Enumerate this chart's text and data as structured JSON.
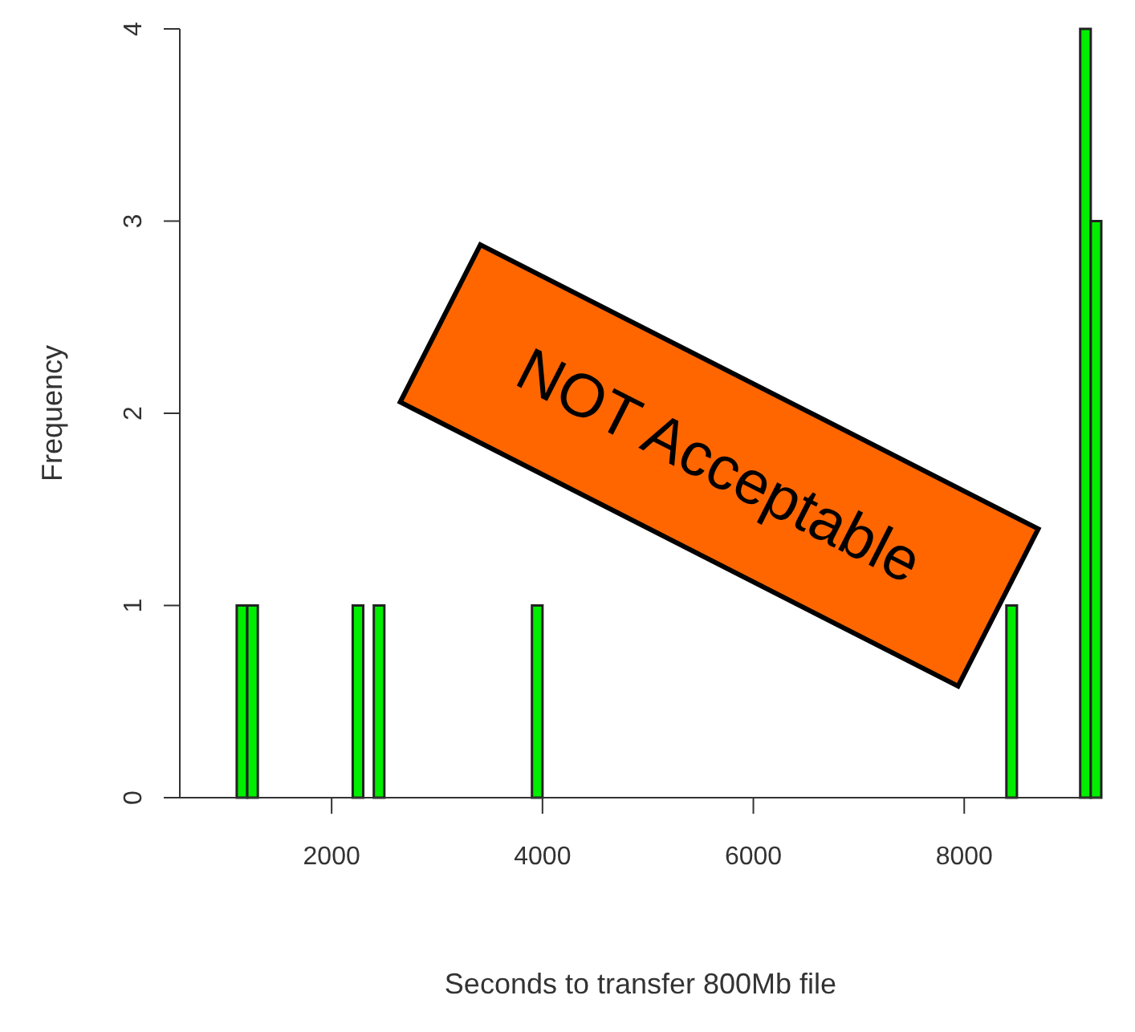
{
  "chart_data": {
    "type": "histogram",
    "xlabel": "Seconds to transfer 800Mb file",
    "ylabel": "Frequency",
    "bins": [
      1100,
      1200,
      1300,
      2200,
      2300,
      2400,
      2500,
      3900,
      4000,
      8400,
      8500,
      9100,
      9200,
      9300
    ],
    "values": [
      1,
      1,
      0,
      1,
      0,
      1,
      0,
      1,
      0,
      1,
      0,
      4,
      3
    ],
    "color": "#00ee00",
    "xlim": [
      560,
      9300
    ],
    "xticks": [
      2000,
      4000,
      6000,
      8000
    ],
    "ylim": [
      0,
      4
    ],
    "yticks": [
      0,
      1,
      2,
      3,
      4
    ],
    "annotations": [
      "NOT Acceptable"
    ]
  }
}
